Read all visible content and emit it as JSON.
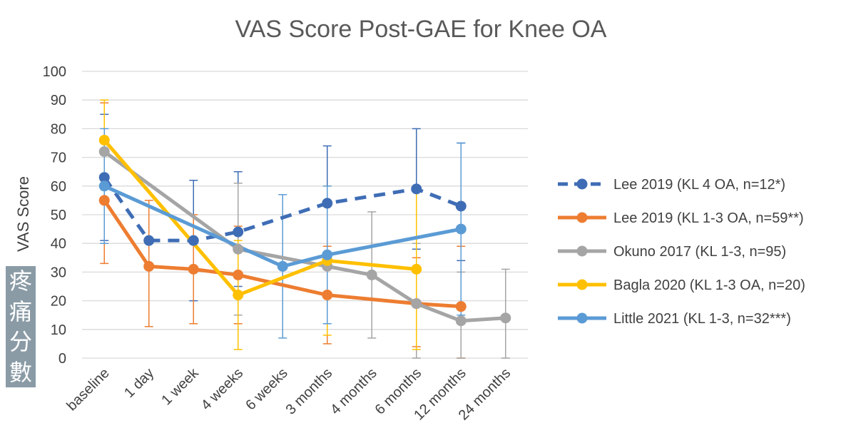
{
  "chart_data": {
    "type": "line",
    "title": "VAS Score Post-GAE for Knee OA",
    "ylabel": "VAS Score",
    "xlabel": "",
    "ylim": [
      0,
      100
    ],
    "yticks": [
      "0",
      "10",
      "20",
      "30",
      "40",
      "50",
      "60",
      "70",
      "80",
      "90",
      "100"
    ],
    "categories": [
      "baseline",
      "1 day",
      "1 week",
      "4 weeks",
      "6 weeks",
      "3 months",
      "4 months",
      "6 months",
      "12 months",
      "24 months"
    ],
    "grid": true,
    "legend_position": "right",
    "series": [
      {
        "name": "Lee 2019 (KL 4 OA, n=12*)",
        "color": "#3f6db5",
        "dashed": true,
        "points": [
          [
            0,
            63
          ],
          [
            1,
            41
          ],
          [
            2,
            41
          ],
          [
            3,
            44
          ],
          [
            5,
            54
          ],
          [
            7,
            59
          ],
          [
            8,
            53
          ]
        ],
        "errors": [
          [
            0,
            41,
            85
          ],
          [
            2,
            20,
            62
          ],
          [
            3,
            25,
            65
          ],
          [
            5,
            37,
            74
          ],
          [
            7,
            38,
            80
          ],
          [
            8,
            34,
            75
          ]
        ]
      },
      {
        "name": "Lee 2019 (KL 1-3 OA, n=59**)",
        "color": "#ed7d31",
        "dashed": false,
        "points": [
          [
            0,
            55
          ],
          [
            1,
            32
          ],
          [
            2,
            31
          ],
          [
            3,
            29
          ],
          [
            5,
            22
          ],
          [
            7,
            19
          ],
          [
            8,
            18
          ]
        ],
        "errors": [
          [
            0,
            33,
            89
          ],
          [
            1,
            11,
            55
          ],
          [
            2,
            12,
            50
          ],
          [
            3,
            12,
            46
          ],
          [
            5,
            5,
            39
          ],
          [
            7,
            4,
            35
          ],
          [
            8,
            0,
            39
          ]
        ]
      },
      {
        "name": "Okuno 2017 (KL 1-3, n=95)",
        "color": "#a5a5a5",
        "dashed": false,
        "points": [
          [
            0,
            72
          ],
          [
            3,
            38
          ],
          [
            5,
            32
          ],
          [
            6,
            29
          ],
          [
            7,
            19
          ],
          [
            8,
            13
          ],
          [
            9,
            14
          ]
        ],
        "errors": [
          [
            3,
            15,
            61
          ],
          [
            6,
            7,
            51
          ],
          [
            7,
            0,
            40
          ],
          [
            8,
            0,
            30
          ],
          [
            9,
            0,
            31
          ]
        ]
      },
      {
        "name": "Bagla 2020 (KL 1-3 OA, n=20)",
        "color": "#ffc000",
        "dashed": false,
        "points": [
          [
            0,
            76
          ],
          [
            3,
            22
          ],
          [
            5,
            34
          ],
          [
            7,
            31
          ]
        ],
        "errors": [
          [
            0,
            62,
            90
          ],
          [
            3,
            3,
            41
          ],
          [
            5,
            8,
            60
          ],
          [
            7,
            3,
            59
          ]
        ]
      },
      {
        "name": "Little 2021 (KL 1-3, n=32***)",
        "color": "#5b9bd5",
        "dashed": false,
        "points": [
          [
            0,
            60
          ],
          [
            4,
            32
          ],
          [
            5,
            36
          ],
          [
            8,
            45
          ]
        ],
        "errors": [
          [
            0,
            40,
            80
          ],
          [
            4,
            7,
            57
          ],
          [
            5,
            12,
            60
          ],
          [
            8,
            15,
            75
          ]
        ]
      }
    ]
  },
  "side_label_chars": [
    "疼",
    "痛",
    "分",
    "數"
  ]
}
